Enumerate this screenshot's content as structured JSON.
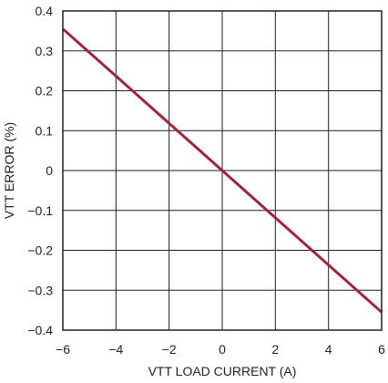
{
  "chart_data": {
    "type": "line",
    "title": "",
    "xlabel": "VTT LOAD CURRENT (A)",
    "ylabel": "VTT ERROR (%)",
    "xlim": [
      -6,
      6
    ],
    "ylim": [
      -0.4,
      0.4
    ],
    "xticks": [
      -6,
      -4,
      -2,
      0,
      2,
      4,
      6
    ],
    "yticks": [
      0.4,
      0.3,
      0.2,
      0.1,
      0,
      -0.1,
      -0.2,
      -0.3,
      -0.4
    ],
    "xtick_labels": [
      "−6",
      "−4",
      "−2",
      "0",
      "2",
      "4",
      "6"
    ],
    "ytick_labels": [
      "0.4",
      "0.3",
      "0.2",
      "0.1",
      "0",
      "−0.1",
      "−0.2",
      "−0.3",
      "−0.4"
    ],
    "grid": true,
    "series": [
      {
        "color": "#a0233c",
        "x": [
          -6,
          6
        ],
        "y": [
          0.355,
          -0.355
        ]
      }
    ]
  }
}
